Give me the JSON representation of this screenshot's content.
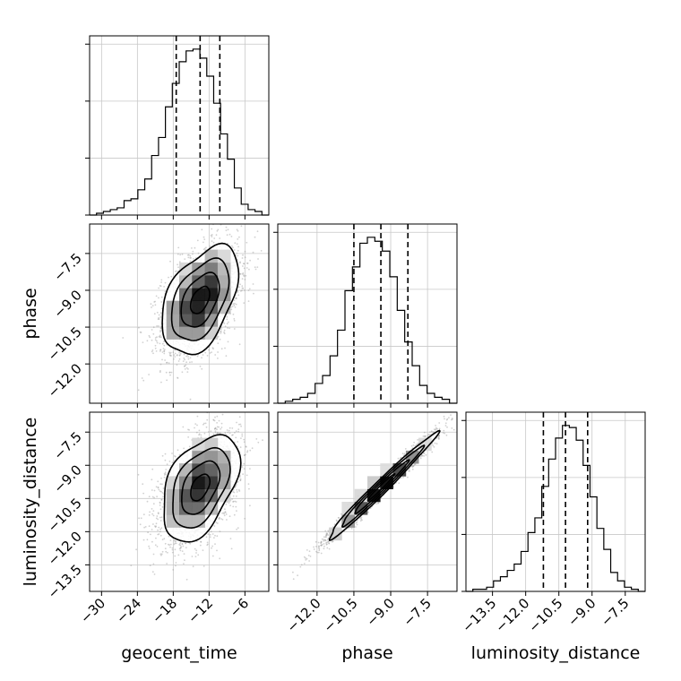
{
  "chart_data": {
    "type": "corner",
    "parameters": [
      "geocent_time",
      "phase",
      "luminosity_distance"
    ],
    "axes": {
      "geocent_time": {
        "range": [
          -32,
          -2
        ],
        "ticks": [
          -30,
          -24,
          -18,
          -12,
          -6
        ],
        "tick_labels": [
          "−30",
          "−24",
          "−18",
          "−12",
          "−6"
        ]
      },
      "phase": {
        "range": [
          -13.6,
          -6.3
        ],
        "ticks": [
          -12.0,
          -10.5,
          -9.0,
          -7.5
        ],
        "tick_labels": [
          "−12.0",
          "−10.5",
          "−9.0",
          "−7.5"
        ]
      },
      "luminosity_distance": {
        "range": [
          -14.7,
          -6.6
        ],
        "ticks": [
          -13.5,
          -12.0,
          -10.5,
          -9.0,
          -7.5
        ],
        "tick_labels": [
          "−13.5",
          "−12.0",
          "−10.5",
          "−9.0",
          "−7.5"
        ]
      }
    },
    "quantiles": {
      "geocent_time": [
        -17.5,
        -13.5,
        -10.2
      ],
      "phase": [
        -10.5,
        -9.4,
        -8.3
      ],
      "luminosity_distance": [
        -11.2,
        -10.2,
        -9.2
      ]
    },
    "histograms": {
      "geocent_time": [
        0,
        1,
        2,
        3,
        4,
        8,
        9,
        14,
        20,
        33,
        43,
        60,
        73,
        85,
        91,
        92,
        87,
        77,
        62,
        45,
        31,
        15,
        6,
        3,
        2,
        0
      ],
      "phase": [
        0,
        1,
        2,
        3,
        5,
        10,
        14,
        24,
        37,
        57,
        69,
        81,
        84,
        82,
        77,
        64,
        47,
        31,
        19,
        9,
        5,
        3,
        2,
        0
      ],
      "luminosity_distance": [
        0,
        1,
        1,
        2,
        5,
        7,
        10,
        13,
        19,
        28,
        35,
        50,
        63,
        73,
        79,
        78,
        72,
        60,
        45,
        30,
        20,
        9,
        5,
        2,
        1,
        0
      ]
    },
    "pairs": [
      {
        "x": "geocent_time",
        "y": "phase",
        "mean": [
          -13.5,
          -9.4
        ],
        "sd": [
          3.2,
          1.1
        ],
        "rho": 0.45
      },
      {
        "x": "geocent_time",
        "y": "luminosity_distance",
        "mean": [
          -13.5,
          -10.0
        ],
        "sd": [
          3.2,
          1.2
        ],
        "rho": 0.45
      },
      {
        "x": "phase",
        "y": "luminosity_distance",
        "mean": [
          -9.4,
          -10.0
        ],
        "sd": [
          1.1,
          1.2
        ],
        "rho": 0.985
      }
    ],
    "grid": true
  }
}
